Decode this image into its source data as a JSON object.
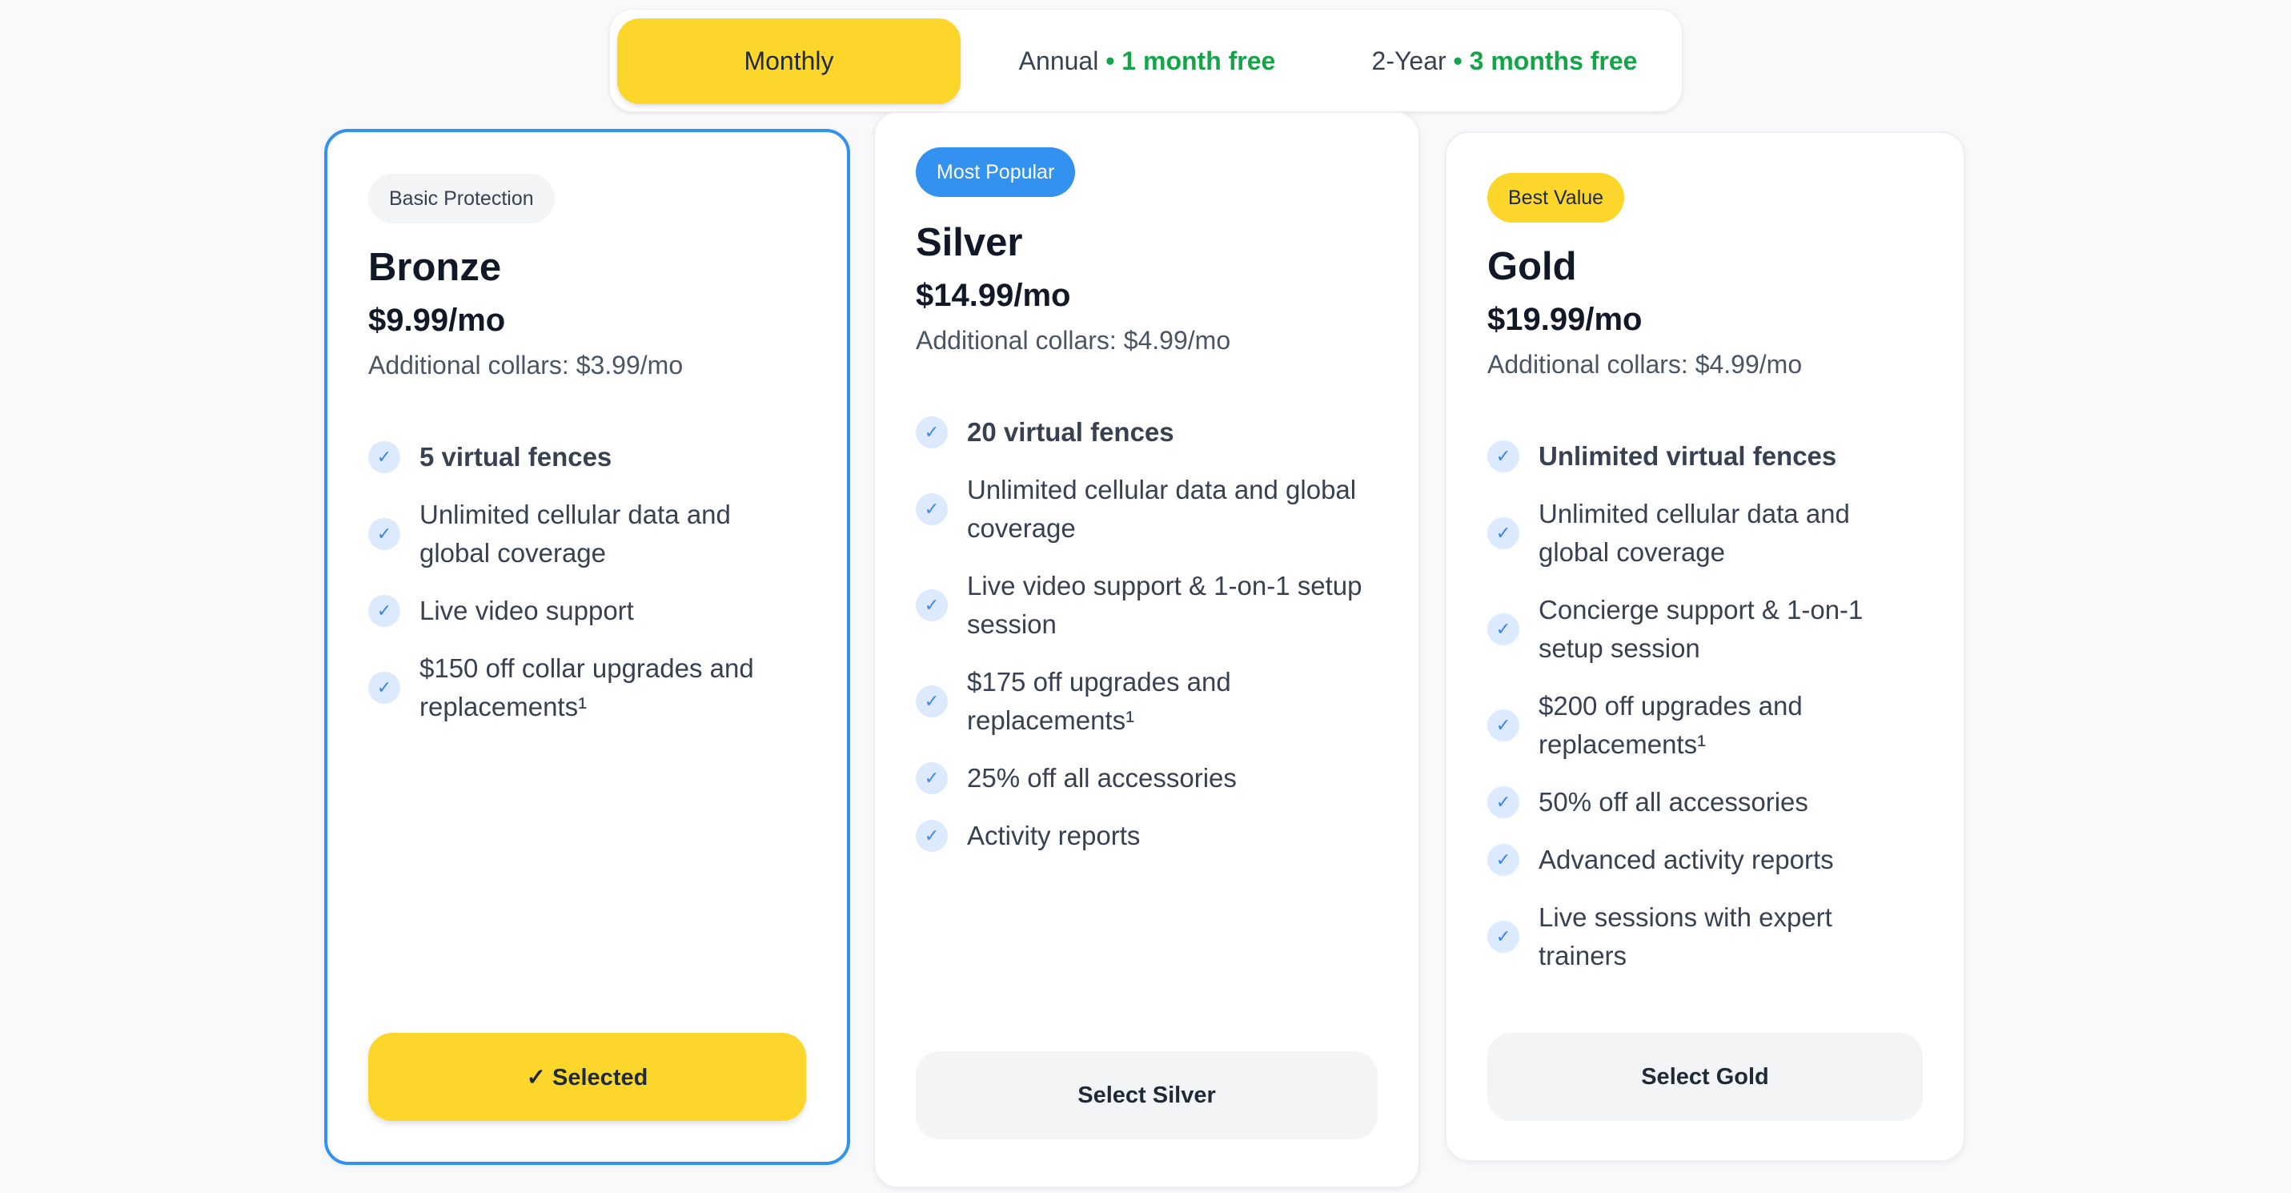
{
  "billing_toggle": {
    "options": [
      {
        "label": "Monthly",
        "active": true
      },
      {
        "label": "Annual",
        "bonus": "1 month free"
      },
      {
        "label": "2-Year",
        "bonus": "3 months free"
      }
    ],
    "separator": "•",
    "bonus_color": "#16a34a",
    "active_color": "#fcd62b"
  },
  "plans": [
    {
      "badge": "Basic Protection",
      "badge_color": "#f3f4f6",
      "name": "Bronze",
      "price": "$9.99/mo",
      "collars": "Additional collars: $3.99/mo",
      "features": [
        "5 virtual fences",
        "Unlimited cellular data and global coverage",
        "Live video support",
        "$150 off collar upgrades and replacements¹"
      ],
      "button": "✓ Selected",
      "selected": true
    },
    {
      "badge": "Most Popular",
      "badge_color": "#3392ef",
      "name": "Silver",
      "price": "$14.99/mo",
      "collars": "Additional collars: $4.99/mo",
      "features": [
        "20 virtual fences",
        "Unlimited cellular data and global coverage",
        "Live video support & 1-on-1 setup session",
        "$175 off upgrades and replacements¹",
        "25% off all accessories",
        "Activity reports"
      ],
      "button": "Select Silver",
      "selected": false
    },
    {
      "badge": "Best Value",
      "badge_color": "#fcd62b",
      "name": "Gold",
      "price": "$19.99/mo",
      "collars": "Additional collars: $4.99/mo",
      "features": [
        "Unlimited virtual fences",
        "Unlimited cellular data and global coverage",
        "Concierge support & 1-on-1 setup session",
        "$200 off upgrades and replacements¹",
        "50% off all accessories",
        "Advanced activity reports",
        "Live sessions with expert trainers"
      ],
      "button": "Select Gold",
      "selected": false
    }
  ],
  "icons": {
    "feature": "check-circle-icon"
  }
}
